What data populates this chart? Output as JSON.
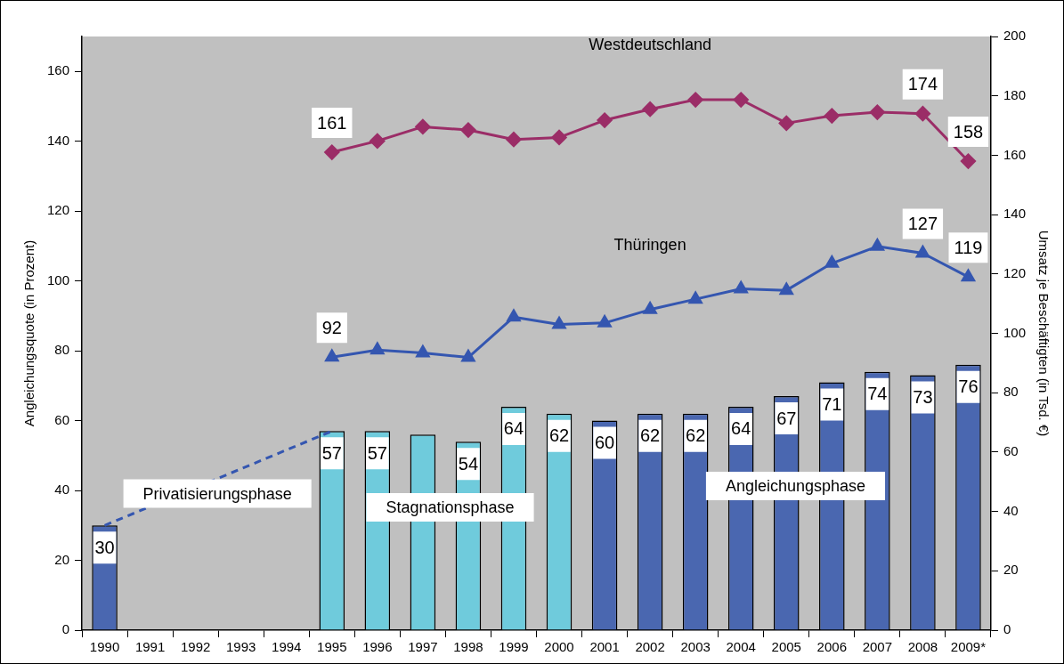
{
  "chart_data": {
    "type": "bar",
    "categories": [
      "1990",
      "1991",
      "1992",
      "1993",
      "1994",
      "1995",
      "1996",
      "1997",
      "1998",
      "1999",
      "2000",
      "2001",
      "2002",
      "2003",
      "2004",
      "2005",
      "2006",
      "2007",
      "2008",
      "2009*"
    ],
    "ylabel": "Angleichungsquote (in Prozent)",
    "y2label": "Umsatz je Beschäftigten (in Tsd. €)",
    "ylim": [
      0,
      170
    ],
    "yticks": [
      0,
      20,
      40,
      60,
      80,
      100,
      120,
      140,
      160
    ],
    "y2lim": [
      0,
      200
    ],
    "y2ticks": [
      0,
      20,
      40,
      60,
      80,
      100,
      120,
      140,
      160,
      180,
      200
    ],
    "grid": false,
    "legend": false,
    "annotations": [
      "Privatisierungsphase",
      "Stagnationsphase",
      "Angleichungsphase"
    ],
    "series": [
      {
        "colors": [
          "#4a67b0",
          "#4a67b0",
          "#4a67b0",
          "#4a67b0",
          "#4a67b0",
          "#6fcbdc",
          "#6fcbdc",
          "#6fcbdc",
          "#6fcbdc",
          "#6fcbdc",
          "#6fcbdc",
          "#4a67b0",
          "#4a67b0",
          "#4a67b0",
          "#4a67b0",
          "#4a67b0",
          "#4a67b0",
          "#4a67b0",
          "#4a67b0",
          "#4a67b0"
        ],
        "values": [
          30,
          null,
          null,
          null,
          null,
          57,
          57,
          56,
          54,
          64,
          62,
          60,
          62,
          62,
          64,
          67,
          71,
          74,
          73,
          76
        ],
        "value_labels": [
          "30",
          null,
          null,
          null,
          null,
          "57",
          "57",
          null,
          "54",
          "64",
          "62",
          "60",
          "62",
          "62",
          "64",
          "67",
          "71",
          "74",
          "73",
          "76"
        ]
      },
      {
        "type": "line",
        "name": "Westdeutschland",
        "color": "#9b2d67",
        "axis": "y2",
        "marker": "diamond",
        "values": [
          null,
          null,
          null,
          null,
          null,
          161,
          164.8,
          169.6,
          168.5,
          165.3,
          166,
          171.8,
          175.5,
          178.7,
          178.7,
          170.8,
          173.3,
          174.5,
          174,
          158
        ],
        "value_labels": [
          null,
          null,
          null,
          null,
          null,
          "161",
          null,
          null,
          null,
          null,
          null,
          null,
          null,
          null,
          null,
          null,
          null,
          null,
          "174",
          "158"
        ]
      },
      {
        "type": "line",
        "name": "Thüringen",
        "color": "#3456b0",
        "axis": "y2",
        "marker": "triangle",
        "values": [
          null,
          null,
          null,
          null,
          null,
          92,
          94.4,
          93.4,
          91.9,
          105.5,
          103,
          103.5,
          108,
          111.5,
          115,
          114.5,
          123.6,
          129.3,
          127,
          119
        ],
        "value_labels": [
          null,
          null,
          null,
          null,
          null,
          "92",
          null,
          null,
          null,
          null,
          null,
          null,
          null,
          null,
          null,
          null,
          null,
          null,
          "127",
          "119"
        ]
      },
      {
        "type": "line",
        "color": "#3456b0",
        "axis": "y",
        "marker": "none",
        "line_style": "dashed",
        "values": [
          30,
          null,
          null,
          null,
          null,
          57,
          null,
          null,
          null,
          null,
          null,
          null,
          null,
          null,
          null,
          null,
          null,
          null,
          null,
          null
        ]
      }
    ]
  }
}
